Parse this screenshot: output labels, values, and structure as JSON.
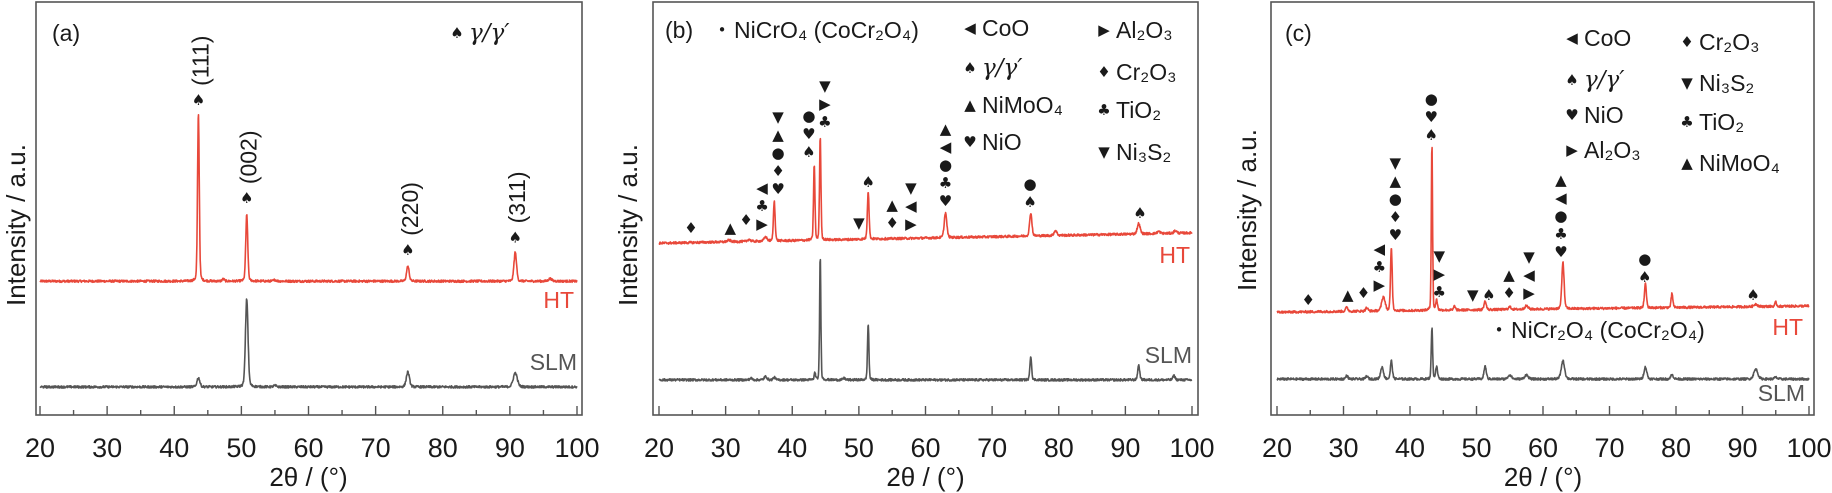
{
  "chart_data": [
    {
      "type": "line",
      "panel_label": "(a)",
      "xlabel": "2θ / (°)",
      "ylabel": "Intensity / a.u.",
      "xlim": [
        20,
        100
      ],
      "xticks": [
        20,
        30,
        40,
        50,
        60,
        70,
        80,
        90,
        100
      ],
      "ylim": [
        0,
        100
      ],
      "series": [
        {
          "name": "HT",
          "color": "#e8483a",
          "baseline": [
            32.4,
            32.4
          ],
          "peaks": [
            [
              43.6,
              40.7,
              0.3
            ],
            [
              47.3,
              0.5,
              0.4
            ],
            [
              50.8,
              16.0,
              0.35
            ],
            [
              55.0,
              0.3,
              0.5
            ],
            [
              74.8,
              3.6,
              0.45
            ],
            [
              90.8,
              7.0,
              0.45
            ],
            [
              96.0,
              0.6,
              0.6
            ]
          ]
        },
        {
          "name": "SLM",
          "color": "#555555",
          "baseline": [
            6.8,
            6.8
          ],
          "peaks": [
            [
              43.6,
              2.2,
              0.5
            ],
            [
              50.8,
              21.3,
              0.45
            ],
            [
              55.0,
              0.3,
              0.5
            ],
            [
              74.8,
              3.6,
              0.55
            ],
            [
              90.8,
              3.4,
              0.7
            ]
          ]
        }
      ],
      "annotations": [
        {
          "x": 43.6,
          "y": 76.3,
          "symbols": [
            "♠"
          ],
          "miller": "(111)"
        },
        {
          "x": 50.8,
          "y": 52.5,
          "symbols": [
            "♠"
          ],
          "miller": "(002)"
        },
        {
          "x": 74.8,
          "y": 40.0,
          "symbols": [
            "♠"
          ],
          "miller": "(220)"
        },
        {
          "x": 90.8,
          "y": 43.0,
          "symbols": [
            "♠"
          ],
          "miller": "(311)"
        }
      ],
      "legend": [
        {
          "symbol": "♠",
          "text": "γ/γ′",
          "italic": true
        }
      ]
    },
    {
      "type": "line",
      "panel_label": "(b)",
      "xlabel": "2θ / (°)",
      "ylabel": "Intensity / a.u.",
      "xlim": [
        20,
        100
      ],
      "xticks": [
        20,
        30,
        40,
        50,
        60,
        70,
        80,
        90,
        100
      ],
      "ylim": [
        0,
        100
      ],
      "series": [
        {
          "name": "HT",
          "color": "#e8483a",
          "baseline": [
            41.6,
            44.1
          ],
          "peaks": [
            [
              30.5,
              0.4,
              0.6
            ],
            [
              33.5,
              0.5,
              0.5
            ],
            [
              36.0,
              1.0,
              0.5
            ],
            [
              37.3,
              9.7,
              0.3
            ],
            [
              43.3,
              18.3,
              0.25
            ],
            [
              44.2,
              24.8,
              0.25
            ],
            [
              51.4,
              11.6,
              0.3
            ],
            [
              63.0,
              6.0,
              0.45
            ],
            [
              75.8,
              5.6,
              0.4
            ],
            [
              79.5,
              1.2,
              0.5
            ],
            [
              92.0,
              2.5,
              0.5
            ],
            [
              95.0,
              0.5,
              0.5
            ],
            [
              97.5,
              0.6,
              0.5
            ]
          ]
        },
        {
          "name": "SLM",
          "color": "#555555",
          "baseline": [
            8.5,
            8.5
          ],
          "peaks": [
            [
              33.8,
              0.4,
              0.4
            ],
            [
              36.0,
              0.8,
              0.5
            ],
            [
              37.3,
              0.6,
              0.4
            ],
            [
              43.4,
              1.7,
              0.25
            ],
            [
              44.2,
              30.0,
              0.22
            ],
            [
              47.8,
              0.4,
              0.4
            ],
            [
              51.4,
              13.6,
              0.25
            ],
            [
              75.8,
              5.8,
              0.3
            ],
            [
              92.0,
              3.6,
              0.35
            ],
            [
              97.3,
              1.0,
              0.4
            ]
          ]
        }
      ],
      "annotations": [
        {
          "x": 24.8,
          "y": 45.3,
          "symbols": [
            "♦"
          ]
        },
        {
          "x": 30.7,
          "y": 45.3,
          "symbols": [
            "▲"
          ]
        },
        {
          "x": 33.4,
          "y": 47.2,
          "symbols": [
            "♦"
          ]
        },
        {
          "x": 35.9,
          "y": 46.3,
          "symbols": [
            "▶",
            "♣",
            "◀"
          ]
        },
        {
          "x": 37.1,
          "y": 54.7,
          "symbols": [
            "♥",
            "♦",
            "●",
            "▲",
            "▼"
          ]
        },
        {
          "x": 43.2,
          "y": 63.7,
          "symbols": [
            "♠",
            "♥",
            "●"
          ]
        },
        {
          "x": 44.2,
          "y": 70.9,
          "symbols": [
            "♣",
            "▶",
            "▼"
          ]
        },
        {
          "x": 50.0,
          "y": 46.5,
          "symbols": [
            "▼"
          ]
        },
        {
          "x": 51.4,
          "y": 56.4,
          "symbols": [
            "♠"
          ]
        },
        {
          "x": 55.0,
          "y": 46.5,
          "symbols": [
            "♦",
            "▲"
          ]
        },
        {
          "x": 57.8,
          "y": 46.2,
          "symbols": [
            "▶",
            "◀",
            "▼"
          ]
        },
        {
          "x": 63.0,
          "y": 51.8,
          "symbols": [
            "♥",
            "♣",
            "●",
            "◀",
            "▲"
          ]
        },
        {
          "x": 75.7,
          "y": 51.6,
          "symbols": [
            "♠",
            "●"
          ]
        },
        {
          "x": 92.2,
          "y": 48.9,
          "symbols": [
            "♠"
          ]
        }
      ],
      "legend": [
        {
          "symbol": "•",
          "text": "NiCrO₄ (CoCr₂O₄)"
        },
        {
          "symbol": "◀",
          "text": "CoO"
        },
        {
          "symbol": "♠",
          "text": "γ/γ′",
          "italic": true
        },
        {
          "symbol": "▲",
          "text": "NiMoO₄"
        },
        {
          "symbol": "♥",
          "text": "NiO"
        },
        {
          "symbol": "▶",
          "text": "Al₂O₃"
        },
        {
          "symbol": "♦",
          "text": "Cr₂O₃"
        },
        {
          "symbol": "♣",
          "text": "TiO₂"
        },
        {
          "symbol": "▼",
          "text": "Ni₃S₂"
        }
      ]
    },
    {
      "type": "line",
      "panel_label": "(c)",
      "xlabel": "2θ / (°)",
      "ylabel": "Intensity / a.u.",
      "xlim": [
        20,
        100
      ],
      "xticks": [
        20,
        30,
        40,
        50,
        60,
        70,
        80,
        90,
        100
      ],
      "ylim": [
        0,
        100
      ],
      "series": [
        {
          "name": "HT",
          "color": "#e8483a",
          "baseline": [
            24.9,
            26.4
          ],
          "peaks": [
            [
              30.5,
              1.0,
              0.4
            ],
            [
              33.5,
              0.8,
              0.4
            ],
            [
              36.0,
              3.4,
              0.6
            ],
            [
              37.2,
              15.3,
              0.3
            ],
            [
              43.3,
              40.4,
              0.22
            ],
            [
              44.0,
              2.4,
              0.3
            ],
            [
              46.7,
              1.0,
              0.3
            ],
            [
              51.3,
              2.0,
              0.4
            ],
            [
              55.0,
              0.6,
              0.5
            ],
            [
              57.5,
              0.8,
              0.6
            ],
            [
              63.0,
              11.4,
              0.4
            ],
            [
              75.4,
              5.8,
              0.35
            ],
            [
              79.4,
              3.4,
              0.3
            ],
            [
              92.0,
              0.6,
              0.6
            ],
            [
              95.0,
              1.0,
              0.3
            ]
          ]
        },
        {
          "name": "SLM",
          "color": "#555555",
          "baseline": [
            8.7,
            8.7
          ],
          "peaks": [
            [
              30.5,
              0.8,
              0.4
            ],
            [
              33.5,
              0.7,
              0.4
            ],
            [
              35.8,
              2.9,
              0.5
            ],
            [
              37.2,
              4.4,
              0.35
            ],
            [
              43.3,
              12.3,
              0.25
            ],
            [
              44.0,
              2.9,
              0.35
            ],
            [
              51.3,
              3.1,
              0.4
            ],
            [
              55.0,
              1.0,
              0.6
            ],
            [
              57.5,
              1.0,
              0.6
            ],
            [
              63.0,
              4.4,
              0.6
            ],
            [
              75.4,
              2.9,
              0.5
            ],
            [
              79.4,
              1.0,
              0.5
            ],
            [
              92.0,
              2.4,
              0.7
            ],
            [
              95.0,
              0.4,
              0.5
            ]
          ]
        }
      ],
      "annotations": [
        {
          "x": 24.7,
          "y": 27.8,
          "symbols": [
            "♦"
          ]
        },
        {
          "x": 30.7,
          "y": 29.0,
          "symbols": [
            "▲"
          ]
        },
        {
          "x": 33.5,
          "y": 29.5,
          "symbols": [
            "♦"
          ]
        },
        {
          "x": 35.6,
          "y": 31.5,
          "symbols": [
            "▶",
            "♣",
            "◀"
          ]
        },
        {
          "x": 37.0,
          "y": 43.6,
          "symbols": [
            "♥",
            "♦",
            "●",
            "▲",
            "▼"
          ]
        },
        {
          "x": 43.2,
          "y": 67.8,
          "symbols": [
            "♠",
            "♥",
            "●"
          ]
        },
        {
          "x": 44.4,
          "y": 29.8,
          "symbols": [
            "♣",
            "▶",
            "▼"
          ]
        },
        {
          "x": 49.9,
          "y": 29.0,
          "symbols": [
            "▼"
          ]
        },
        {
          "x": 51.4,
          "y": 29.0,
          "symbols": [
            "♠"
          ]
        },
        {
          "x": 54.9,
          "y": 29.5,
          "symbols": [
            "♦",
            "▲"
          ]
        },
        {
          "x": 57.9,
          "y": 29.5,
          "symbols": [
            "▶",
            "◀",
            "▼"
          ]
        },
        {
          "x": 62.7,
          "y": 39.5,
          "symbols": [
            "♥",
            "♣",
            "●",
            "◀",
            "▲"
          ]
        },
        {
          "x": 75.3,
          "y": 33.4,
          "symbols": [
            "♠",
            "●"
          ]
        },
        {
          "x": 91.6,
          "y": 29.0,
          "symbols": [
            "♠"
          ]
        }
      ],
      "legend": [
        {
          "symbol": "◀",
          "text": "CoO"
        },
        {
          "symbol": "♠",
          "text": "γ/γ′",
          "italic": true
        },
        {
          "symbol": "♥",
          "text": "NiO"
        },
        {
          "symbol": "▶",
          "text": "Al₂O₃"
        },
        {
          "symbol": "♦",
          "text": "Cr₂O₃"
        },
        {
          "symbol": "▼",
          "text": "Ni₃S₂"
        },
        {
          "symbol": "♣",
          "text": "TiO₂"
        },
        {
          "symbol": "▲",
          "text": "NiMoO₄"
        },
        {
          "symbol": "•",
          "text": "NiCr₂O₄ (CoCr₂O₄)"
        }
      ]
    }
  ]
}
